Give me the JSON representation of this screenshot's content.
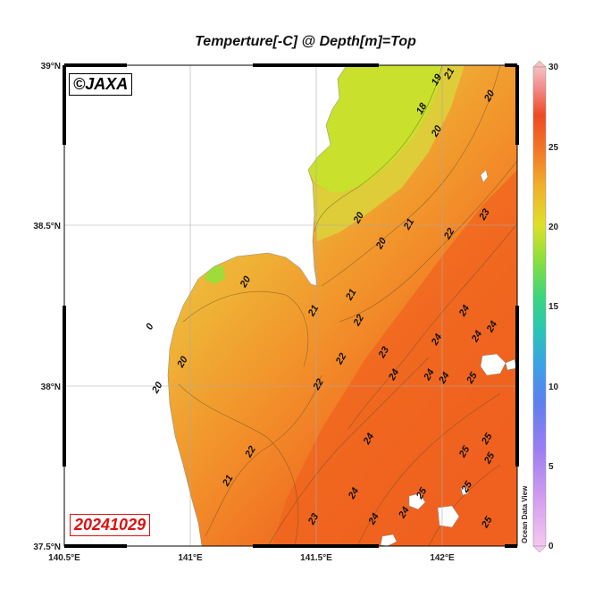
{
  "title": "Temperture[-C] @ Depth[m]=Top",
  "copyright": "©JAXA",
  "date": "20241029",
  "credit": "Ocean Data View",
  "axes": {
    "lon_ticks": [
      "140.5°E",
      "141°E",
      "141.5°E",
      "142°E"
    ],
    "lat_ticks": [
      "39°N",
      "38.5°N",
      "38°N",
      "37.5°N"
    ]
  },
  "colorbar": {
    "ticks": [
      "30",
      "25",
      "20",
      "15",
      "10",
      "5",
      "0"
    ],
    "min": 0,
    "max": 30
  },
  "contour_labels": [
    {
      "text": "21",
      "lon": 142.04,
      "lat": 38.97
    },
    {
      "text": "19",
      "lon": 141.99,
      "lat": 38.95
    },
    {
      "text": "20",
      "lon": 142.2,
      "lat": 38.9
    },
    {
      "text": "18",
      "lon": 141.93,
      "lat": 38.86
    },
    {
      "text": "20",
      "lon": 141.99,
      "lat": 38.79
    },
    {
      "text": "23",
      "lon": 142.18,
      "lat": 38.53
    },
    {
      "text": "20",
      "lon": 141.68,
      "lat": 38.52
    },
    {
      "text": "21",
      "lon": 141.88,
      "lat": 38.5
    },
    {
      "text": "22",
      "lon": 142.04,
      "lat": 38.47
    },
    {
      "text": "20",
      "lon": 141.77,
      "lat": 38.44
    },
    {
      "text": "20",
      "lon": 141.23,
      "lat": 38.32
    },
    {
      "text": "21",
      "lon": 141.65,
      "lat": 38.28
    },
    {
      "text": "21",
      "lon": 141.5,
      "lat": 38.23
    },
    {
      "text": "22",
      "lon": 141.68,
      "lat": 38.2
    },
    {
      "text": "24",
      "lon": 142.1,
      "lat": 38.23
    },
    {
      "text": "24",
      "lon": 142.21,
      "lat": 38.18
    },
    {
      "text": "0",
      "lon": 140.85,
      "lat": 38.18
    },
    {
      "text": "24",
      "lon": 141.99,
      "lat": 38.14
    },
    {
      "text": "24",
      "lon": 142.15,
      "lat": 38.15
    },
    {
      "text": "23",
      "lon": 141.78,
      "lat": 38.1
    },
    {
      "text": "20",
      "lon": 140.98,
      "lat": 38.07
    },
    {
      "text": "22",
      "lon": 141.61,
      "lat": 38.08
    },
    {
      "text": "24",
      "lon": 141.82,
      "lat": 38.03
    },
    {
      "text": "24",
      "lon": 141.96,
      "lat": 38.03
    },
    {
      "text": "24",
      "lon": 142.02,
      "lat": 38.02
    },
    {
      "text": "25",
      "lon": 142.13,
      "lat": 38.02
    },
    {
      "text": "20",
      "lon": 140.88,
      "lat": 37.99
    },
    {
      "text": "22",
      "lon": 141.52,
      "lat": 38.0
    },
    {
      "text": "24",
      "lon": 141.72,
      "lat": 37.83
    },
    {
      "text": "25",
      "lon": 142.19,
      "lat": 37.83
    },
    {
      "text": "22",
      "lon": 141.25,
      "lat": 37.79
    },
    {
      "text": "25",
      "lon": 142.1,
      "lat": 37.79
    },
    {
      "text": "25",
      "lon": 142.2,
      "lat": 37.77
    },
    {
      "text": "21",
      "lon": 141.16,
      "lat": 37.7
    },
    {
      "text": "25",
      "lon": 142.11,
      "lat": 37.68
    },
    {
      "text": "24",
      "lon": 141.66,
      "lat": 37.66
    },
    {
      "text": "25",
      "lon": 141.93,
      "lat": 37.66
    },
    {
      "text": "24",
      "lon": 141.86,
      "lat": 37.6
    },
    {
      "text": "23",
      "lon": 141.5,
      "lat": 37.58
    },
    {
      "text": "24",
      "lon": 141.74,
      "lat": 37.58
    },
    {
      "text": "25",
      "lon": 142.19,
      "lat": 37.57
    }
  ]
}
